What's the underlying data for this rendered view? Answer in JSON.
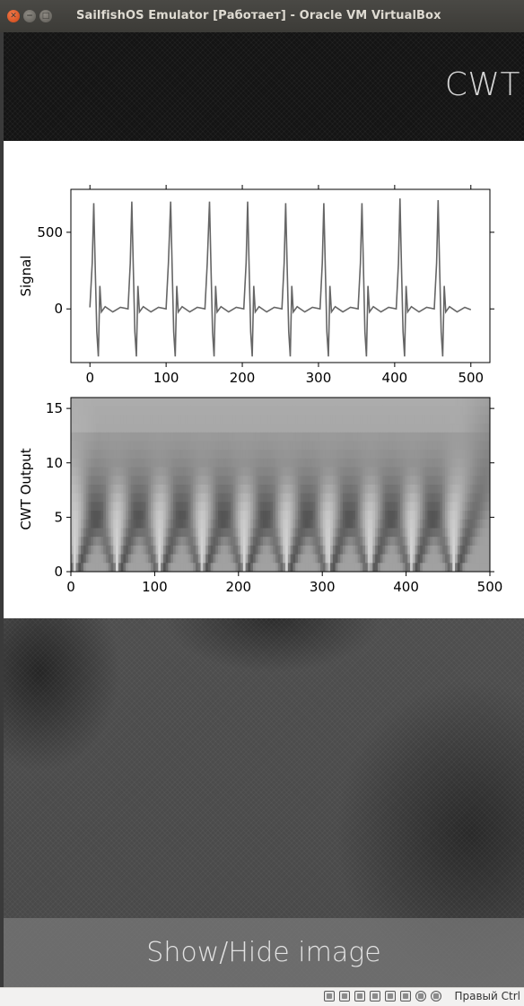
{
  "window": {
    "title": "SailfishOS Emulator [Работает] - Oracle VM VirtualBox",
    "buttons": [
      "close-icon",
      "minimize-icon",
      "maximize-icon"
    ]
  },
  "app": {
    "page_title": "CWT",
    "toggle_button_label": "Show/Hide image"
  },
  "status_bar": {
    "icons": [
      "hard-disk-icon",
      "network-icon",
      "shared-folders-icon",
      "display-icon",
      "usb-icon",
      "cpu-icon",
      "capture-icon",
      "mouse-integration-icon"
    ],
    "host_key_label": "Правый Ctrl"
  },
  "chart_data": [
    {
      "type": "line",
      "ylabel": "Signal",
      "xlim": [
        -25,
        525
      ],
      "ylim": [
        -350,
        780
      ],
      "xticks": [
        0,
        100,
        200,
        300,
        400,
        500
      ],
      "yticks": [
        0,
        500
      ],
      "grid": false,
      "color": "#666666",
      "peak_positions": [
        5,
        55,
        106,
        157,
        207,
        257,
        307,
        357,
        407,
        457
      ],
      "peak_heights": [
        690,
        700,
        700,
        700,
        700,
        690,
        690,
        690,
        720,
        710
      ],
      "series": [
        {
          "x": [
            0,
            3,
            5,
            7,
            9,
            11,
            13,
            15,
            20,
            30,
            40,
            50,
            53,
            55,
            57,
            59,
            61,
            63,
            65,
            70,
            80,
            90,
            100,
            103,
            106,
            108,
            110,
            112,
            114,
            116,
            121,
            131,
            141,
            151,
            154,
            157,
            159,
            161,
            163,
            165,
            167,
            172,
            182,
            192,
            202,
            205,
            207,
            209,
            211,
            213,
            215,
            217,
            222,
            232,
            242,
            252,
            255,
            257,
            259,
            261,
            263,
            265,
            267,
            272,
            282,
            292,
            302,
            305,
            307,
            309,
            311,
            313,
            315,
            317,
            322,
            332,
            342,
            352,
            355,
            357,
            359,
            361,
            363,
            365,
            367,
            372,
            382,
            392,
            402,
            405,
            407,
            409,
            411,
            413,
            415,
            417,
            422,
            432,
            442,
            452,
            455,
            457,
            459,
            461,
            463,
            465,
            467,
            472,
            482,
            492,
            500
          ],
          "y": [
            10,
            300,
            690,
            250,
            -150,
            -310,
            150,
            -20,
            15,
            -20,
            10,
            0,
            300,
            700,
            260,
            -150,
            -310,
            150,
            -20,
            15,
            -20,
            10,
            0,
            300,
            700,
            260,
            -150,
            -310,
            150,
            -20,
            15,
            -20,
            10,
            0,
            300,
            700,
            260,
            -150,
            -310,
            150,
            -20,
            15,
            -20,
            10,
            0,
            300,
            700,
            260,
            -150,
            -310,
            150,
            -20,
            15,
            -20,
            10,
            0,
            300,
            690,
            260,
            -150,
            -310,
            150,
            -20,
            15,
            -20,
            10,
            0,
            300,
            690,
            260,
            -150,
            -310,
            150,
            -20,
            15,
            -20,
            10,
            0,
            300,
            690,
            260,
            -150,
            -310,
            150,
            -20,
            15,
            -20,
            10,
            0,
            300,
            720,
            260,
            -150,
            -310,
            150,
            -20,
            15,
            -20,
            10,
            0,
            300,
            710,
            260,
            -150,
            -310,
            150,
            -20,
            15,
            -20,
            10,
            -5
          ]
        }
      ]
    },
    {
      "type": "heatmap",
      "ylabel": "CWT Output",
      "xlim": [
        0,
        500
      ],
      "ylim": [
        0,
        16
      ],
      "xticks": [
        0,
        100,
        200,
        300,
        400,
        500
      ],
      "yticks": [
        0,
        5,
        10,
        15
      ],
      "colormap": "gray",
      "peak_positions": [
        5,
        55,
        106,
        157,
        207,
        257,
        307,
        357,
        407,
        457
      ]
    }
  ]
}
